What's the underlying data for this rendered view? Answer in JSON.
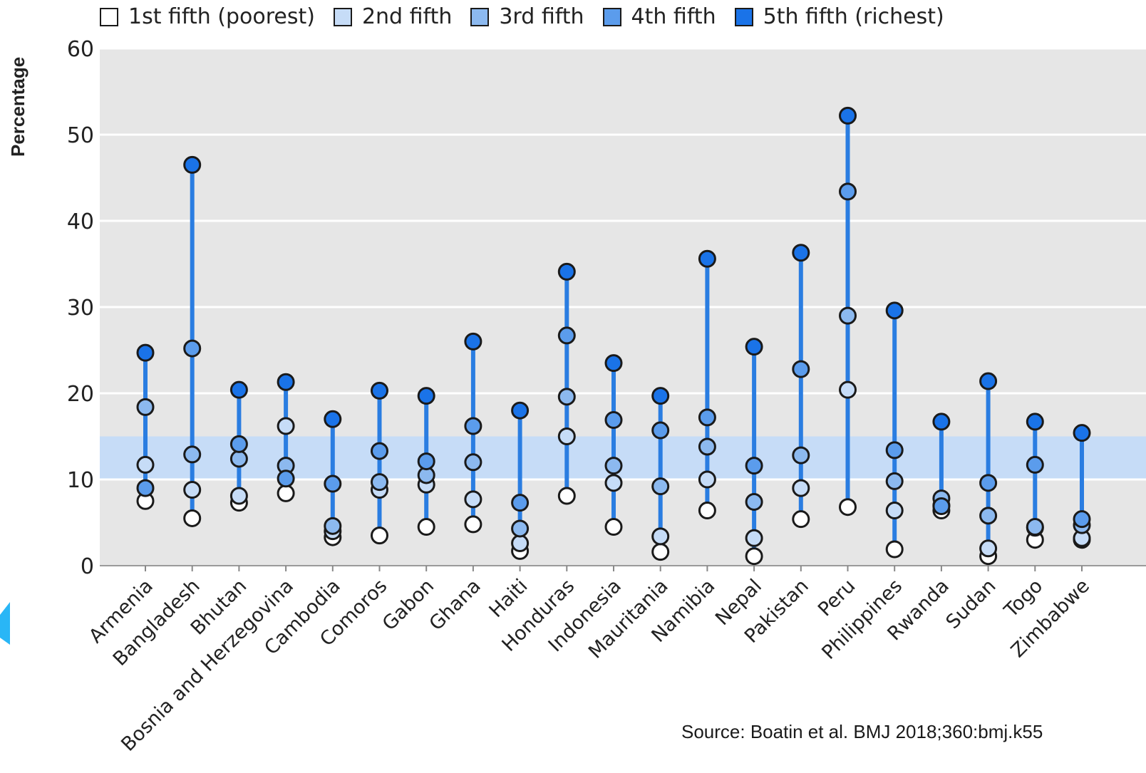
{
  "chart_data": {
    "type": "scatter",
    "ylabel": "Percentage",
    "ylim": [
      0,
      60
    ],
    "yticks": [
      0,
      10,
      20,
      30,
      40,
      50,
      60
    ],
    "grid": true,
    "legend_position": "top",
    "highlight_band": [
      10,
      15
    ],
    "source": "Source:  Boatin et al. BMJ 2018;360:bmj.k55",
    "categories": [
      "Armenia",
      "Bangladesh",
      "Bhutan",
      "Bosnia and Herzegovina",
      "Cambodia",
      "Comoros",
      "Gabon",
      "Ghana",
      "Haiti",
      "Honduras",
      "Indonesia",
      "Mauritania",
      "Namibia",
      "Nepal",
      "Pakistan",
      "Peru",
      "Philippines",
      "Rwanda",
      "Sudan",
      "Togo",
      "Zimbabwe"
    ],
    "series": [
      {
        "name": "1st fifth (poorest)",
        "color": "#ffffff",
        "values": [
          7.5,
          5.5,
          7.3,
          8.4,
          3.3,
          3.5,
          4.5,
          4.8,
          1.7,
          8.1,
          4.5,
          1.6,
          6.4,
          1.1,
          5.4,
          6.8,
          1.9,
          6.4,
          1.1,
          3.0,
          3.0
        ]
      },
      {
        "name": "2nd fifth",
        "color": "#c6dcf7",
        "values": [
          11.7,
          8.8,
          8.1,
          16.2,
          4.0,
          8.8,
          9.4,
          7.7,
          2.6,
          15.0,
          9.6,
          3.4,
          10.0,
          3.2,
          9.0,
          20.4,
          6.4,
          7.0,
          2.0,
          4.4,
          3.2
        ]
      },
      {
        "name": "3rd fifth",
        "color": "#8cb9ef",
        "values": [
          18.4,
          12.9,
          12.4,
          11.6,
          4.6,
          9.7,
          10.5,
          12.0,
          4.3,
          19.6,
          11.6,
          9.2,
          13.8,
          7.4,
          12.8,
          29.0,
          9.8,
          7.8,
          5.8,
          4.5,
          4.7
        ]
      },
      {
        "name": "4th fifth",
        "color": "#5b9cec",
        "values": [
          9.0,
          25.2,
          14.1,
          10.1,
          9.5,
          13.3,
          12.1,
          16.2,
          7.3,
          26.7,
          16.9,
          15.7,
          17.2,
          11.6,
          22.8,
          43.4,
          13.4,
          6.9,
          9.6,
          11.7,
          5.4
        ]
      },
      {
        "name": "5th fifth (richest)",
        "color": "#1a73e8",
        "values": [
          24.7,
          46.5,
          20.4,
          21.3,
          17.0,
          20.3,
          19.7,
          26.0,
          18.0,
          34.1,
          23.5,
          19.7,
          35.6,
          25.4,
          36.3,
          52.2,
          29.6,
          16.7,
          21.4,
          16.7,
          15.4
        ]
      }
    ]
  }
}
